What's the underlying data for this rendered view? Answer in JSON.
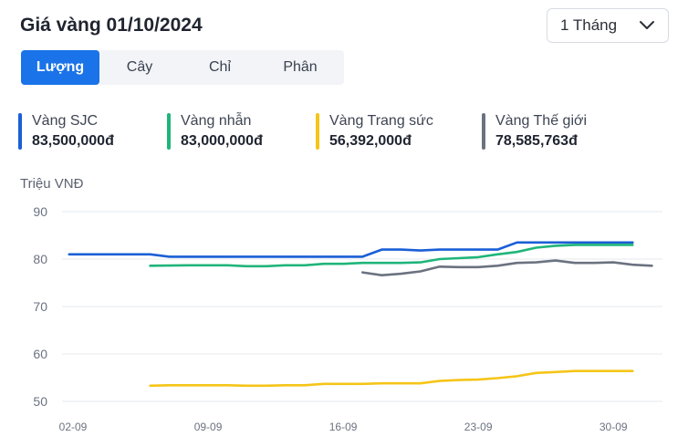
{
  "header": {
    "title": "Giá vàng 01/10/2024",
    "range_label": "1 Tháng",
    "range_icon": "chevron-down-icon"
  },
  "tabs": [
    {
      "label": "Lượng",
      "active": true
    },
    {
      "label": "Cây",
      "active": false
    },
    {
      "label": "Chỉ",
      "active": false
    },
    {
      "label": "Phân",
      "active": false
    }
  ],
  "legend": [
    {
      "name": "Vàng SJC",
      "value": "83,500,000đ",
      "color": "#1a5fd6"
    },
    {
      "name": "Vàng nhẫn",
      "value": "83,000,000đ",
      "color": "#1fb57a"
    },
    {
      "name": "Vàng Trang sức",
      "value": "56,392,000đ",
      "color": "#f5c518"
    },
    {
      "name": "Vàng Thế giới",
      "value": "78,585,763đ",
      "color": "#6b7280"
    }
  ],
  "chart_data": {
    "type": "line",
    "ylabel": "Triệu VNĐ",
    "ylim": [
      50,
      90
    ],
    "yticks": [
      90,
      80,
      70,
      60,
      50
    ],
    "x_ticks": [
      {
        "label": "02-09",
        "day": 0
      },
      {
        "label": "09-09",
        "day": 7
      },
      {
        "label": "16-09",
        "day": 14
      },
      {
        "label": "23-09",
        "day": 21
      },
      {
        "label": "30-09",
        "day": 28
      }
    ],
    "x_range": [
      0,
      30
    ],
    "grid": true,
    "series": [
      {
        "name": "Vàng SJC",
        "color": "#1a5fd6",
        "points": [
          [
            -0.2,
            81
          ],
          [
            4,
            81
          ],
          [
            5,
            80.5
          ],
          [
            6,
            80.5
          ],
          [
            8,
            80.5
          ],
          [
            10,
            80.5
          ],
          [
            12,
            80.5
          ],
          [
            14,
            80.5
          ],
          [
            15,
            80.5
          ],
          [
            16,
            82
          ],
          [
            17,
            82
          ],
          [
            18,
            81.8
          ],
          [
            19,
            82
          ],
          [
            21,
            82
          ],
          [
            22,
            82
          ],
          [
            23,
            83.5
          ],
          [
            25,
            83.5
          ],
          [
            27,
            83.5
          ],
          [
            29,
            83.5
          ]
        ]
      },
      {
        "name": "Vàng nhẫn",
        "color": "#1fb57a",
        "points": [
          [
            4,
            78.6
          ],
          [
            6,
            78.7
          ],
          [
            8,
            78.7
          ],
          [
            9,
            78.5
          ],
          [
            10,
            78.5
          ],
          [
            11,
            78.7
          ],
          [
            12,
            78.7
          ],
          [
            13,
            79
          ],
          [
            14,
            79
          ],
          [
            15,
            79.2
          ],
          [
            16,
            79.2
          ],
          [
            17,
            79.2
          ],
          [
            18,
            79.3
          ],
          [
            19,
            80
          ],
          [
            20,
            80.2
          ],
          [
            21,
            80.4
          ],
          [
            22,
            81
          ],
          [
            23,
            81.5
          ],
          [
            24,
            82.4
          ],
          [
            25,
            82.8
          ],
          [
            26,
            83
          ],
          [
            27,
            83
          ],
          [
            28,
            83
          ],
          [
            29,
            83
          ]
        ]
      },
      {
        "name": "Vàng Trang sức",
        "color": "#f5c518",
        "points": [
          [
            4,
            53.3
          ],
          [
            5,
            53.4
          ],
          [
            6,
            53.4
          ],
          [
            8,
            53.4
          ],
          [
            9,
            53.3
          ],
          [
            10,
            53.3
          ],
          [
            11,
            53.4
          ],
          [
            12,
            53.4
          ],
          [
            13,
            53.7
          ],
          [
            14,
            53.7
          ],
          [
            15,
            53.7
          ],
          [
            16,
            53.8
          ],
          [
            17,
            53.8
          ],
          [
            18,
            53.8
          ],
          [
            19,
            54.3
          ],
          [
            20,
            54.5
          ],
          [
            21,
            54.6
          ],
          [
            22,
            54.9
          ],
          [
            23,
            55.3
          ],
          [
            24,
            56
          ],
          [
            25,
            56.2
          ],
          [
            26,
            56.4
          ],
          [
            27,
            56.4
          ],
          [
            28,
            56.4
          ],
          [
            29,
            56.4
          ]
        ]
      },
      {
        "name": "Vàng Thế giới",
        "color": "#6b7280",
        "points": [
          [
            15,
            77.2
          ],
          [
            16,
            76.6
          ],
          [
            17,
            76.9
          ],
          [
            18,
            77.4
          ],
          [
            19,
            78.4
          ],
          [
            20,
            78.3
          ],
          [
            21,
            78.3
          ],
          [
            22,
            78.6
          ],
          [
            23,
            79.2
          ],
          [
            24,
            79.3
          ],
          [
            25,
            79.7
          ],
          [
            26,
            79.2
          ],
          [
            27,
            79.2
          ],
          [
            28,
            79.3
          ],
          [
            29,
            78.8
          ],
          [
            30,
            78.6
          ]
        ]
      }
    ]
  }
}
